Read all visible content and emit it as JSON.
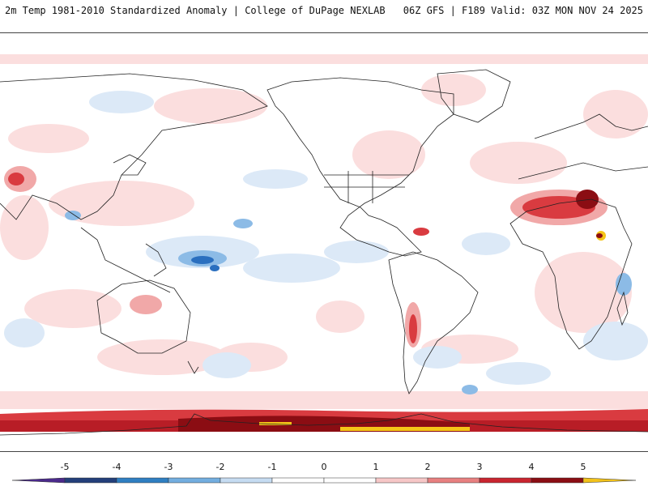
{
  "header": {
    "title": "2m Temp 1981-2010 Standardized Anomaly | College of DuPage NEXLAB",
    "run_info": "06Z GFS | F189 Valid: 03Z MON NOV 24 2025"
  },
  "colorbar": {
    "ticks": [
      "-5",
      "-4",
      "-3",
      "-2",
      "-1",
      "0",
      "1",
      "2",
      "3",
      "4",
      "5"
    ],
    "colors": [
      "#4b2a8c",
      "#233f7a",
      "#2f7fc2",
      "#73aee0",
      "#c6dcf2",
      "#ffffff",
      "#ffffff",
      "#f7c7c7",
      "#e88080",
      "#c9252f",
      "#8b0d13",
      "#f2c21a"
    ]
  },
  "palette": {
    "anomaly_pos_light": "#fbdede",
    "anomaly_pos_mid": "#f1a8a8",
    "anomaly_pos_strong": "#d93b40",
    "anomaly_pos_extreme": "#8b0d13",
    "anomaly_neg_light": "#dce9f7",
    "anomaly_neg_mid": "#8cbbe6",
    "anomaly_neg_strong": "#2a6fbf",
    "highlight": "#f5c518",
    "coastline": "#222222"
  }
}
